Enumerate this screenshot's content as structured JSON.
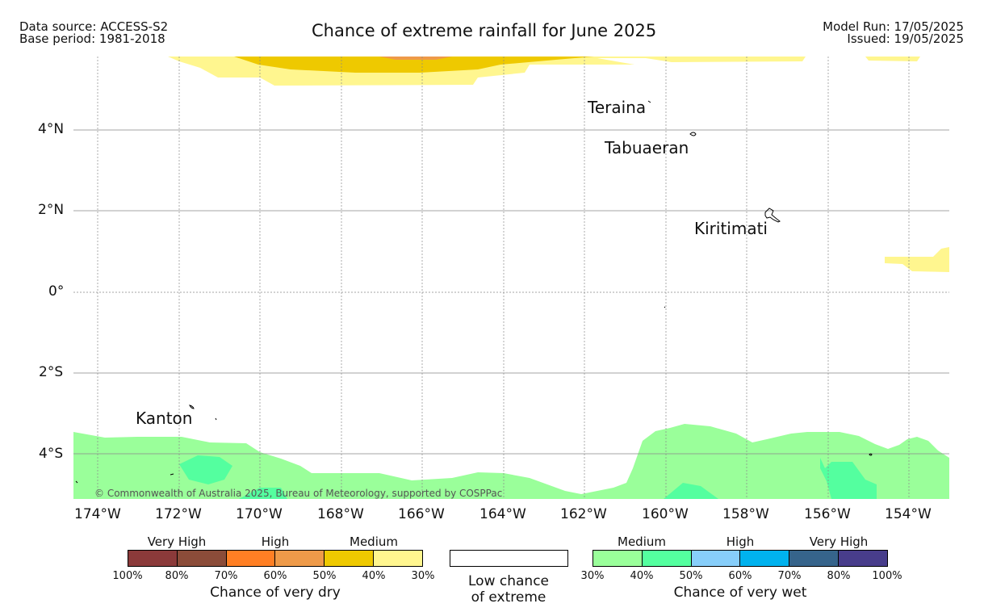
{
  "header": {
    "data_source": "Data source: ACCESS-S2",
    "base_period": "Base period: 1981-2018",
    "title": "Chance of extreme rainfall for June 2025",
    "model_run": "Model Run: 17/05/2025",
    "issued": "Issued: 19/05/2025"
  },
  "map": {
    "lon_ticks": [
      "174°W",
      "172°W",
      "170°W",
      "168°W",
      "166°W",
      "164°W",
      "162°W",
      "160°W",
      "158°W",
      "156°W",
      "154°W"
    ],
    "lat_ticks": [
      "4°N",
      "2°N",
      "0°",
      "2°S",
      "4°S"
    ],
    "places": {
      "teraina": "Teraina",
      "tabuaeran": "Tabuaeran",
      "kiritimati": "Kiritimati",
      "kanton": "Kanton"
    },
    "credit": "© Commonwealth of Australia 2025, Bureau of Meteorology, supported by COSPPac",
    "colors": {
      "dry_30": "#fff68f",
      "dry_40": "#eec900",
      "dry_50": "#ee9a49",
      "wet_30": "#9aff9a",
      "wet_40": "#54ff9f",
      "grid": "#888888"
    }
  },
  "legend": {
    "dry": {
      "levels": [
        "Very High",
        "High",
        "Medium"
      ],
      "swatches": [
        "#8b3a3a",
        "#8b4c39",
        "#ff7f24",
        "#ee9a49",
        "#eec900",
        "#fff68f"
      ],
      "percents": [
        "100%",
        "80%",
        "70%",
        "60%",
        "50%",
        "40%",
        "30%"
      ],
      "caption": "Chance of very dry"
    },
    "neutral": {
      "caption_line1": "Low chance",
      "caption_line2": "of extreme",
      "color": "#ffffff"
    },
    "wet": {
      "levels": [
        "Medium",
        "High",
        "Very High"
      ],
      "swatches": [
        "#9aff9a",
        "#54ff9f",
        "#87cefa",
        "#00b2ee",
        "#36648b",
        "#483d8b"
      ],
      "percents": [
        "30%",
        "40%",
        "50%",
        "60%",
        "70%",
        "80%",
        "100%"
      ],
      "caption": "Chance of very wet"
    }
  }
}
